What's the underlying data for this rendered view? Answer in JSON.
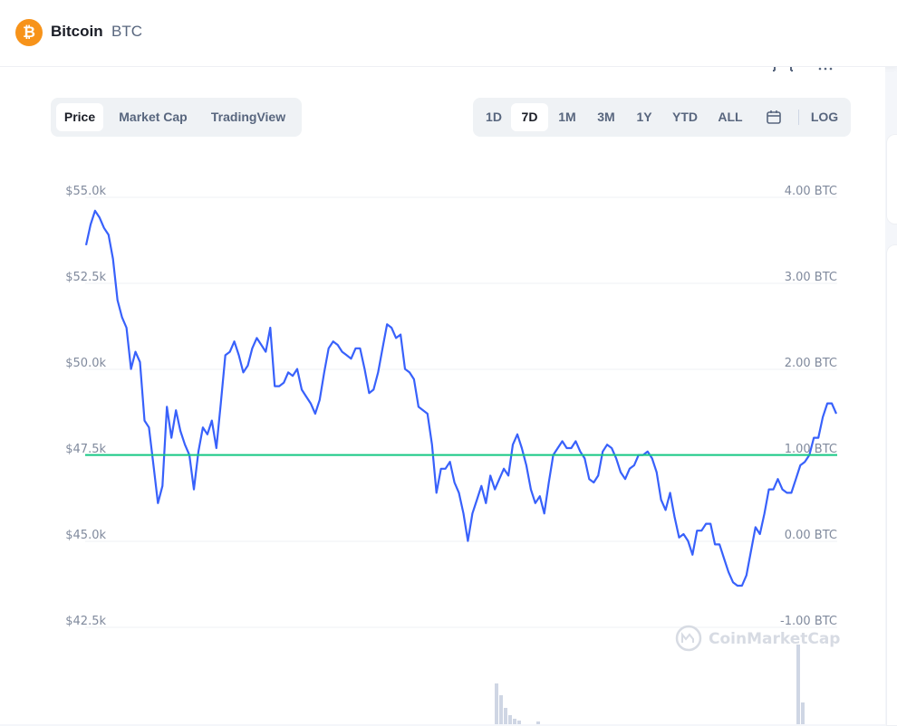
{
  "coin": {
    "logo_glyph": "₿",
    "name": "Bitcoin",
    "symbol": "BTC",
    "logo_color": "#f7931a"
  },
  "chart_tabs": [
    "Price",
    "Market Cap",
    "TradingView"
  ],
  "active_chart_tab": "Price",
  "ranges": [
    "1D",
    "7D",
    "1M",
    "3M",
    "1Y",
    "YTD",
    "ALL"
  ],
  "active_range": "7D",
  "calendar_icon": "calendar-icon",
  "log_label": "LOG",
  "watermark": "CoinMarketCap",
  "colors": {
    "line": "#3861fb",
    "baseline": "#16c784",
    "grid": "#eff2f5",
    "tick": "#808a9d"
  },
  "chart_data": {
    "type": "line",
    "title": "",
    "left_axis": {
      "ticks": [
        "$55.0k",
        "$52.5k",
        "$50.0k",
        "$47.5k",
        "$45.0k",
        "$42.5k"
      ],
      "values": [
        55000,
        52500,
        50000,
        47500,
        45000,
        42500
      ]
    },
    "right_axis": {
      "ticks": [
        "4.00 BTC",
        "3.00 BTC",
        "2.00 BTC",
        "1.00 BTC",
        "0.00 BTC",
        "-1.00 BTC"
      ]
    },
    "ylim": [
      42500,
      55000
    ],
    "baseline": 47300,
    "grid": true,
    "series": [
      {
        "values": [
          53400,
          54000,
          54400,
          54200,
          53900,
          53700,
          53000,
          51800,
          51300,
          51000,
          49800,
          50300,
          50000,
          48300,
          48100,
          47000,
          45900,
          46400,
          48700,
          47800,
          48600,
          48000,
          47600,
          47300,
          46300,
          47400,
          48100,
          47900,
          48300,
          47500,
          48800,
          50200,
          50300,
          50600,
          50200,
          49700,
          49900,
          50400,
          50700,
          50500,
          50300,
          51000,
          49300,
          49300,
          49400,
          49700,
          49600,
          49800,
          49200,
          49000,
          48800,
          48500,
          48900,
          49700,
          50400,
          50600,
          50500,
          50300,
          50200,
          50100,
          50400,
          50400,
          49800,
          49100,
          49200,
          49700,
          50400,
          51100,
          51000,
          50700,
          50800,
          49800,
          49700,
          49500,
          48700,
          48600,
          48500,
          47600,
          46200,
          46900,
          46900,
          47100,
          46500,
          46200,
          45600,
          44800,
          45600,
          46000,
          46400,
          45900,
          46700,
          46300,
          46600,
          46900,
          46700,
          47600,
          47900,
          47500,
          47000,
          46300,
          45900,
          46100,
          45600,
          46500,
          47300,
          47500,
          47700,
          47500,
          47500,
          47700,
          47400,
          47200,
          46600,
          46500,
          46700,
          47400,
          47600,
          47500,
          47200,
          46800,
          46600,
          46900,
          47000,
          47300,
          47300,
          47400,
          47200,
          46800,
          46000,
          45700,
          46200,
          45500,
          44900,
          45000,
          44800,
          44400,
          45100,
          45100,
          45300,
          45300,
          44700,
          44700,
          44300,
          43900,
          43600,
          43500,
          43500,
          43800,
          44500,
          45200,
          45000,
          45600,
          46300,
          46300,
          46600,
          46300,
          46200,
          46200,
          46600,
          47000,
          47100,
          47300,
          47800,
          47800,
          48400,
          48800,
          48800,
          48500
        ]
      }
    ],
    "volume_bars": [
      {
        "x": 546,
        "h": 45
      },
      {
        "x": 551,
        "h": 32
      },
      {
        "x": 556,
        "h": 18
      },
      {
        "x": 561,
        "h": 10
      },
      {
        "x": 566,
        "h": 6
      },
      {
        "x": 571,
        "h": 4
      },
      {
        "x": 592,
        "h": 3
      },
      {
        "x": 879,
        "h": 88
      },
      {
        "x": 884,
        "h": 24
      }
    ]
  }
}
